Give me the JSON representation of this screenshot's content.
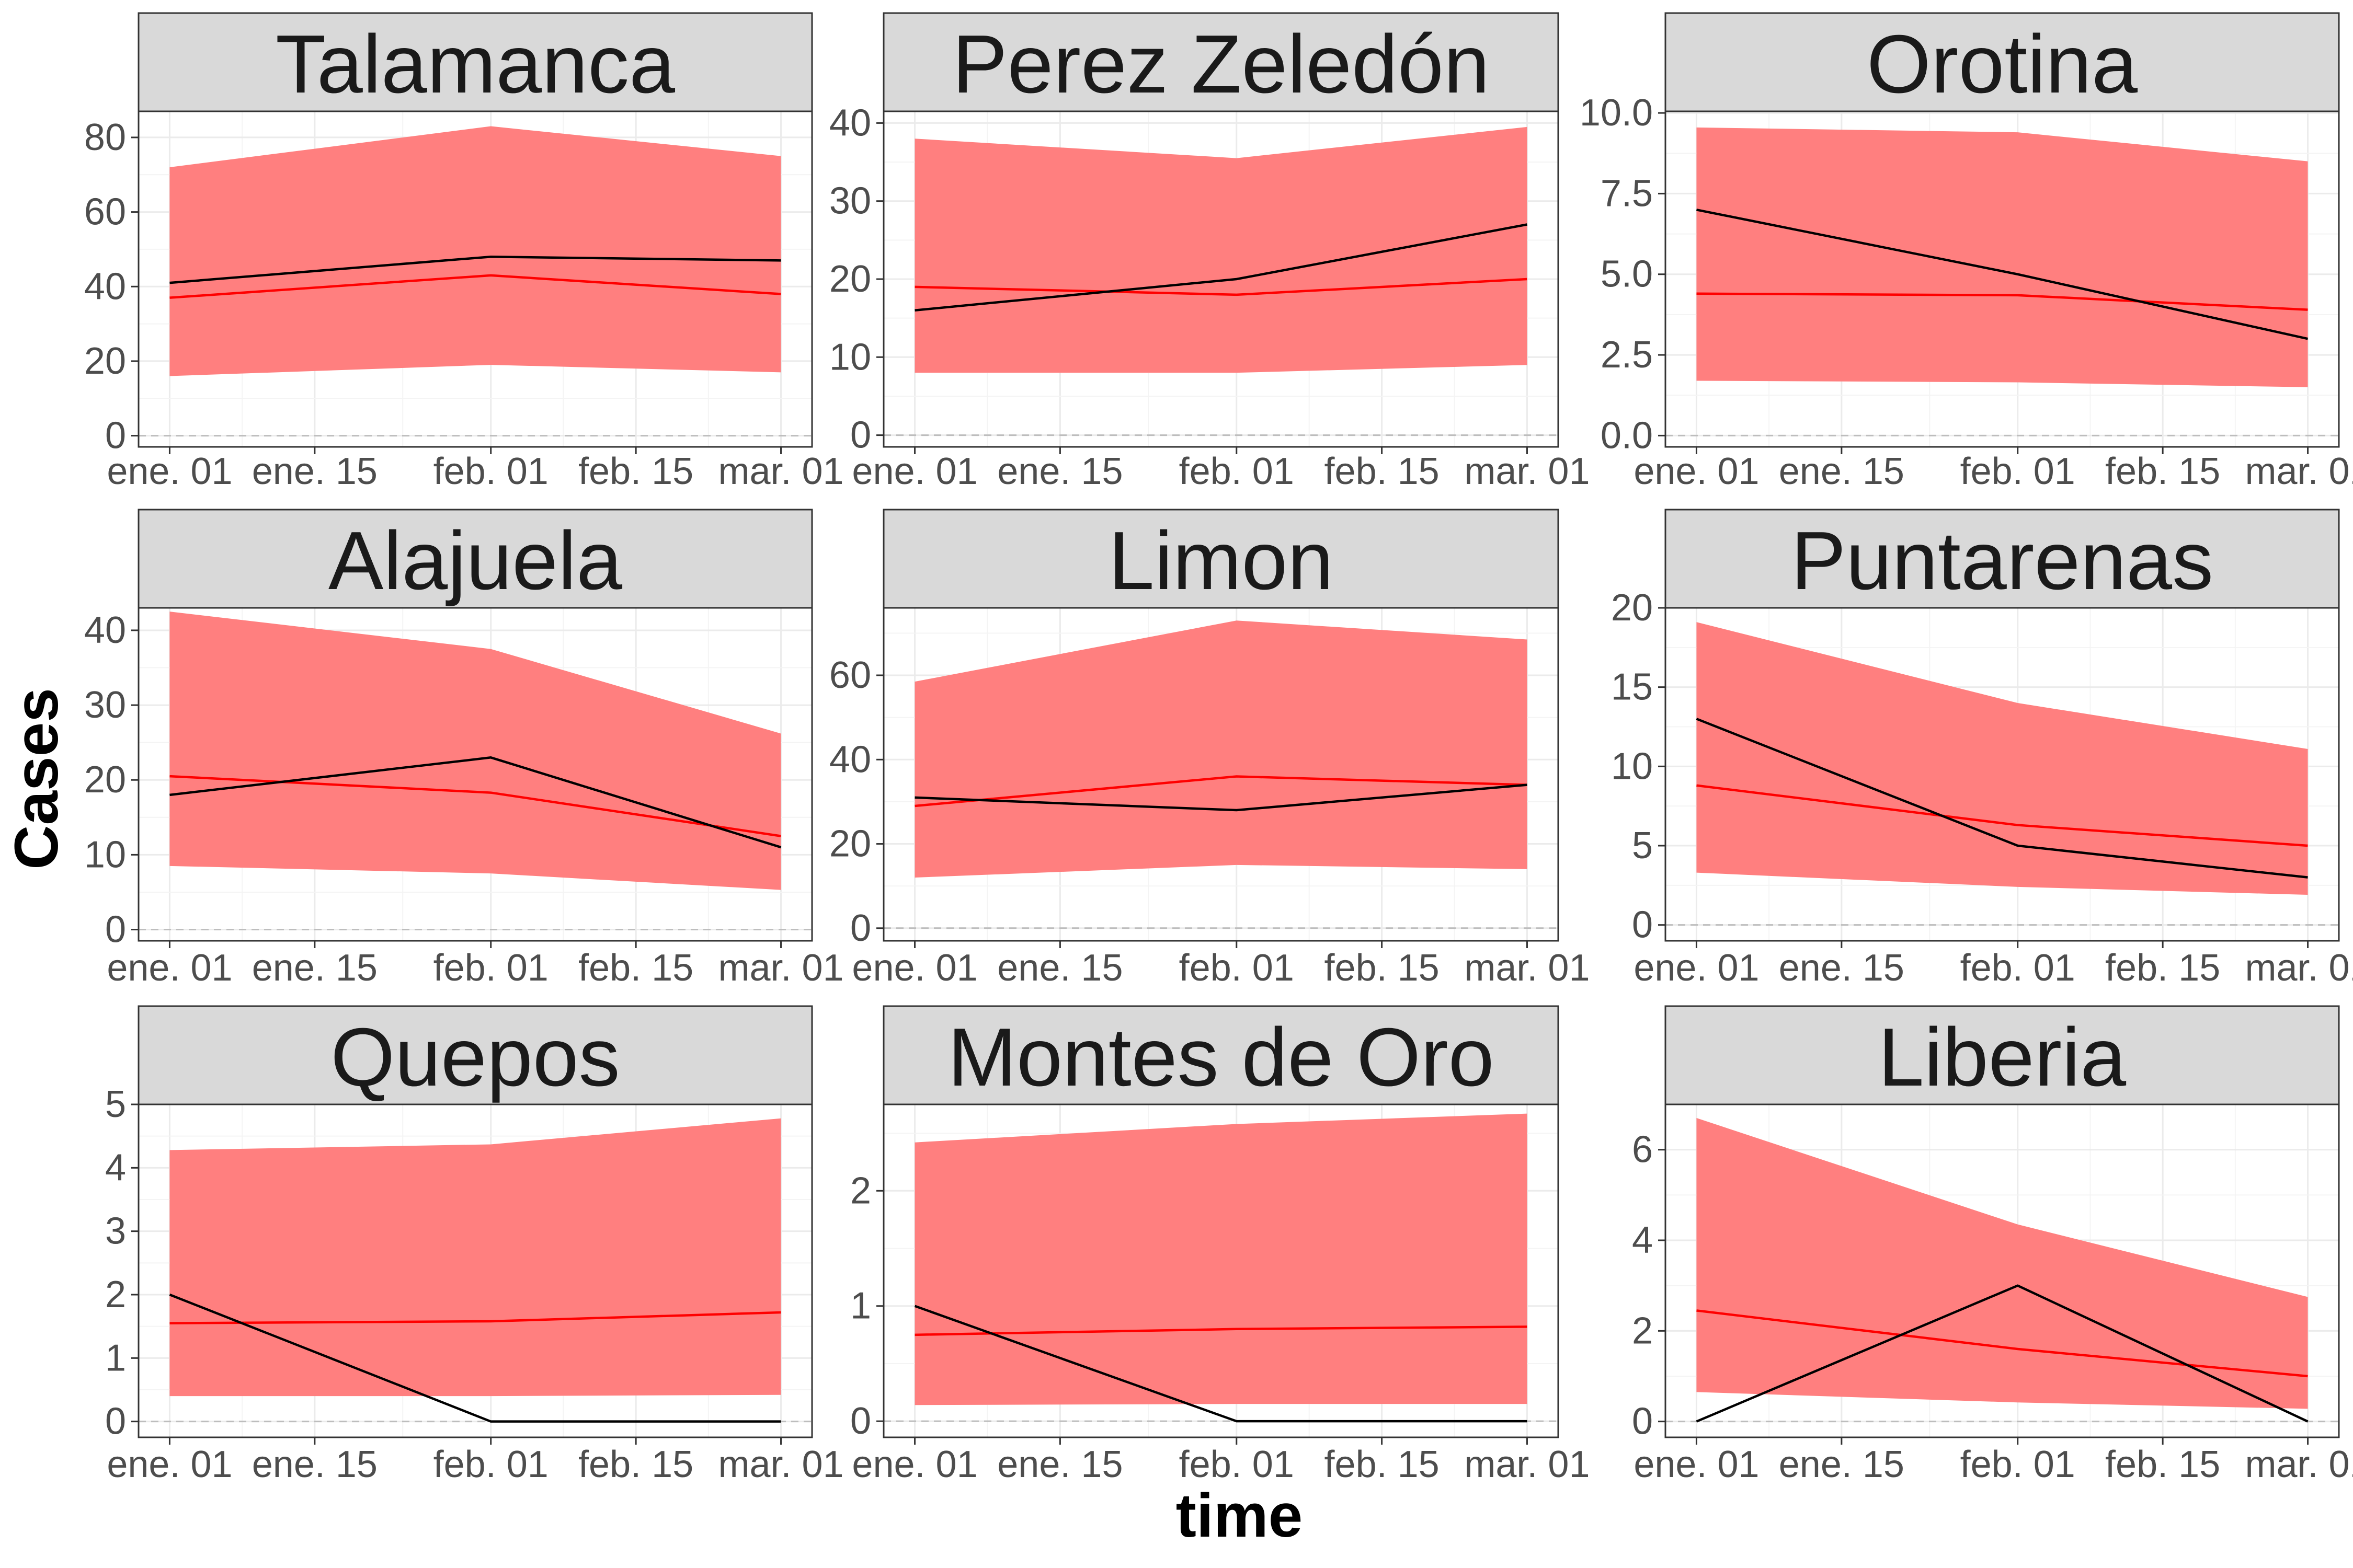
{
  "figure": {
    "xlabel": "time",
    "ylabel": "Cases",
    "x_ticks": [
      "ene. 01",
      "ene. 15",
      "feb. 01",
      "feb. 15",
      "mar. 01"
    ],
    "colors": {
      "band": "#ff7f7f",
      "predicted_line": "#ff0000",
      "observed_line": "#000000",
      "strip_bg": "#d9d9d9",
      "grid": "#ebebeb",
      "zero_line": "#bdbdbd"
    },
    "grid": true,
    "layout": "3x3 facets"
  },
  "chart_data": [
    {
      "type": "line",
      "title": "Talamanca",
      "x": [
        "2021-01-01",
        "2021-02-01",
        "2021-03-01"
      ],
      "ylim": [
        -3,
        87
      ],
      "yticks": [
        0,
        20,
        40,
        60,
        80
      ],
      "series": [
        {
          "values": [
            41,
            48,
            47
          ]
        },
        {
          "values": [
            37,
            43,
            38
          ]
        }
      ],
      "band": {
        "lower": [
          16,
          19,
          17
        ],
        "upper": [
          72,
          83,
          75
        ]
      }
    },
    {
      "type": "line",
      "title": "Perez Zeledón",
      "x": [
        "2021-01-01",
        "2021-02-01",
        "2021-03-01"
      ],
      "ylim": [
        -1.5,
        41.5
      ],
      "yticks": [
        0,
        10,
        20,
        30,
        40
      ],
      "series": [
        {
          "values": [
            16,
            20,
            27
          ]
        },
        {
          "values": [
            19,
            18,
            20
          ]
        }
      ],
      "band": {
        "lower": [
          8,
          8,
          9
        ],
        "upper": [
          38,
          35.5,
          39.5
        ]
      }
    },
    {
      "type": "line",
      "title": "Orotina",
      "x": [
        "2021-01-01",
        "2021-02-01",
        "2021-03-01"
      ],
      "ylim": [
        -0.35,
        10.05
      ],
      "yticks": [
        "0.0",
        "2.5",
        "5.0",
        "7.5",
        "10.0"
      ],
      "series": [
        {
          "values": [
            7,
            5,
            3
          ]
        },
        {
          "values": [
            4.4,
            4.35,
            3.9
          ]
        }
      ],
      "band": {
        "lower": [
          1.7,
          1.65,
          1.5
        ],
        "upper": [
          9.55,
          9.4,
          8.5
        ]
      }
    },
    {
      "type": "line",
      "title": "Alajuela",
      "x": [
        "2021-01-01",
        "2021-02-01",
        "2021-03-01"
      ],
      "ylim": [
        -1.5,
        43
      ],
      "yticks": [
        0,
        10,
        20,
        30,
        40
      ],
      "series": [
        {
          "values": [
            18,
            23,
            11
          ]
        },
        {
          "values": [
            20.5,
            18.3,
            12.5
          ]
        }
      ],
      "band": {
        "lower": [
          8.5,
          7.5,
          5.3
        ],
        "upper": [
          42.5,
          37.5,
          26.2
        ]
      }
    },
    {
      "type": "line",
      "title": "Limon",
      "x": [
        "2021-01-01",
        "2021-02-01",
        "2021-03-01"
      ],
      "ylim": [
        -3,
        76
      ],
      "yticks": [
        0,
        20,
        40,
        60
      ],
      "series": [
        {
          "values": [
            31,
            28,
            34
          ]
        },
        {
          "values": [
            29,
            36,
            34
          ]
        }
      ],
      "band": {
        "lower": [
          12,
          15,
          14
        ],
        "upper": [
          58.5,
          73,
          68.5
        ]
      }
    },
    {
      "type": "line",
      "title": "Puntarenas",
      "x": [
        "2021-01-01",
        "2021-02-01",
        "2021-03-01"
      ],
      "ylim": [
        -1,
        20
      ],
      "yticks": [
        0,
        5,
        10,
        15,
        20
      ],
      "series": [
        {
          "values": [
            13,
            5,
            3
          ]
        },
        {
          "values": [
            8.8,
            6.3,
            5
          ]
        }
      ],
      "band": {
        "lower": [
          3.3,
          2.4,
          1.9
        ],
        "upper": [
          19.1,
          14,
          11.1
        ]
      }
    },
    {
      "type": "line",
      "title": "Quepos",
      "x": [
        "2021-01-01",
        "2021-02-01",
        "2021-03-01"
      ],
      "ylim": [
        -0.25,
        5
      ],
      "yticks": [
        0,
        1,
        2,
        3,
        4,
        5
      ],
      "series": [
        {
          "values": [
            2,
            0,
            0
          ]
        },
        {
          "values": [
            1.55,
            1.58,
            1.72
          ]
        }
      ],
      "band": {
        "lower": [
          0.4,
          0.4,
          0.42
        ],
        "upper": [
          4.28,
          4.37,
          4.78
        ]
      }
    },
    {
      "type": "line",
      "title": "Montes de Oro",
      "x": [
        "2021-01-01",
        "2021-02-01",
        "2021-03-01"
      ],
      "ylim": [
        -0.14,
        2.75
      ],
      "yticks": [
        0,
        1,
        2
      ],
      "series": [
        {
          "values": [
            1,
            0,
            0
          ]
        },
        {
          "values": [
            0.75,
            0.8,
            0.82
          ]
        }
      ],
      "band": {
        "lower": [
          0.14,
          0.15,
          0.15
        ],
        "upper": [
          2.42,
          2.58,
          2.67
        ]
      }
    },
    {
      "type": "line",
      "title": "Liberia",
      "x": [
        "2021-01-01",
        "2021-02-01",
        "2021-03-01"
      ],
      "ylim": [
        -0.35,
        7
      ],
      "yticks": [
        0,
        2,
        4,
        6
      ],
      "series": [
        {
          "values": [
            0,
            3,
            0
          ]
        },
        {
          "values": [
            2.45,
            1.6,
            1
          ]
        }
      ],
      "band": {
        "lower": [
          0.65,
          0.42,
          0.28
        ],
        "upper": [
          6.7,
          4.35,
          2.75
        ]
      }
    }
  ]
}
